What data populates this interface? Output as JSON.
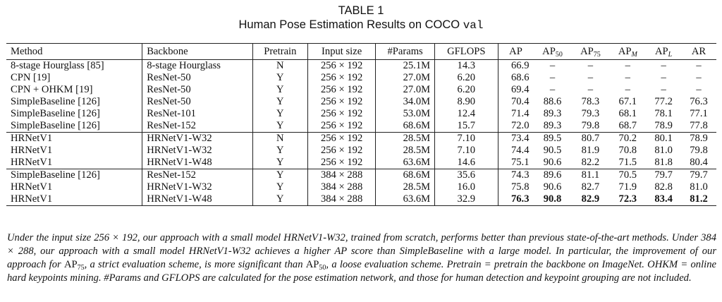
{
  "caption": {
    "label": "TABLE 1",
    "title_main": "Human Pose Estimation Results on COCO ",
    "title_mono": "val"
  },
  "table": {
    "headers": [
      "Method",
      "Backbone",
      "Pretrain",
      "Input size",
      "#Params",
      "GFLOPS",
      "AP",
      "AP",
      "AP",
      "AP",
      "AP",
      "AR"
    ],
    "header_subscripts": [
      "",
      "",
      "",
      "",
      "",
      "",
      "",
      "50",
      "75",
      "M",
      "L",
      ""
    ],
    "rows": [
      [
        "8-stage Hourglass [85]",
        "8-stage Hourglass",
        "N",
        "256 × 192",
        "25.1M",
        "14.3",
        "66.9",
        "–",
        "–",
        "–",
        "–",
        "–"
      ],
      [
        "CPN [19]",
        "ResNet-50",
        "Y",
        "256 × 192",
        "27.0M",
        "6.20",
        "68.6",
        "–",
        "–",
        "–",
        "–",
        "–"
      ],
      [
        "CPN + OHKM [19]",
        "ResNet-50",
        "Y",
        "256 × 192",
        "27.0M",
        "6.20",
        "69.4",
        "–",
        "–",
        "–",
        "–",
        "–"
      ],
      [
        "SimpleBaseline [126]",
        "ResNet-50",
        "Y",
        "256 × 192",
        "34.0M",
        "8.90",
        "70.4",
        "88.6",
        "78.3",
        "67.1",
        "77.2",
        "76.3"
      ],
      [
        "SimpleBaseline [126]",
        "ResNet-101",
        "Y",
        "256 × 192",
        "53.0M",
        "12.4",
        "71.4",
        "89.3",
        "79.3",
        "68.1",
        "78.1",
        "77.1"
      ],
      [
        "SimpleBaseline [126]",
        "ResNet-152",
        "Y",
        "256 × 192",
        "68.6M",
        "15.7",
        "72.0",
        "89.3",
        "79.8",
        "68.7",
        "78.9",
        "77.8"
      ],
      [
        "HRNetV1",
        "HRNetV1-W32",
        "N",
        "256 × 192",
        "28.5M",
        "7.10",
        "73.4",
        "89.5",
        "80.7",
        "70.2",
        "80.1",
        "78.9"
      ],
      [
        "HRNetV1",
        "HRNetV1-W32",
        "Y",
        "256 × 192",
        "28.5M",
        "7.10",
        "74.4",
        "90.5",
        "81.9",
        "70.8",
        "81.0",
        "79.8"
      ],
      [
        "HRNetV1",
        "HRNetV1-W48",
        "Y",
        "256 × 192",
        "63.6M",
        "14.6",
        "75.1",
        "90.6",
        "82.2",
        "71.5",
        "81.8",
        "80.4"
      ],
      [
        "SimpleBaseline [126]",
        "ResNet-152",
        "Y",
        "384 × 288",
        "68.6M",
        "35.6",
        "74.3",
        "89.6",
        "81.1",
        "70.5",
        "79.7",
        "79.7"
      ],
      [
        "HRNetV1",
        "HRNetV1-W32",
        "Y",
        "384 × 288",
        "28.5M",
        "16.0",
        "75.8",
        "90.6",
        "82.7",
        "71.9",
        "82.8",
        "81.0"
      ],
      [
        "HRNetV1",
        "HRNetV1-W48",
        "Y",
        "384 × 288",
        "63.6M",
        "32.9",
        "76.3",
        "90.8",
        "82.9",
        "72.3",
        "83.4",
        "81.2"
      ]
    ],
    "group_start_rows": [
      6,
      9
    ],
    "bold_row": 11
  },
  "note": "Under the input size 256 × 192, our approach with a small model HRNetV1-W32, trained from scratch, performs better than previous state-of-the-art methods. Under 384 × 288, our approach with a small model HRNetV1-W32 achieves a higher AP score than SimpleBaseline with a large model. In particular, the improvement of our approach for AP75, a strict evaluation scheme, is more significant than AP50, a loose evaluation scheme. Pretrain = pretrain the backbone on ImageNet. OHKM = online hard keypoints mining. #Params and GFLOPS are calculated for the pose estimation network, and those for human detection and keypoint grouping are not included."
}
